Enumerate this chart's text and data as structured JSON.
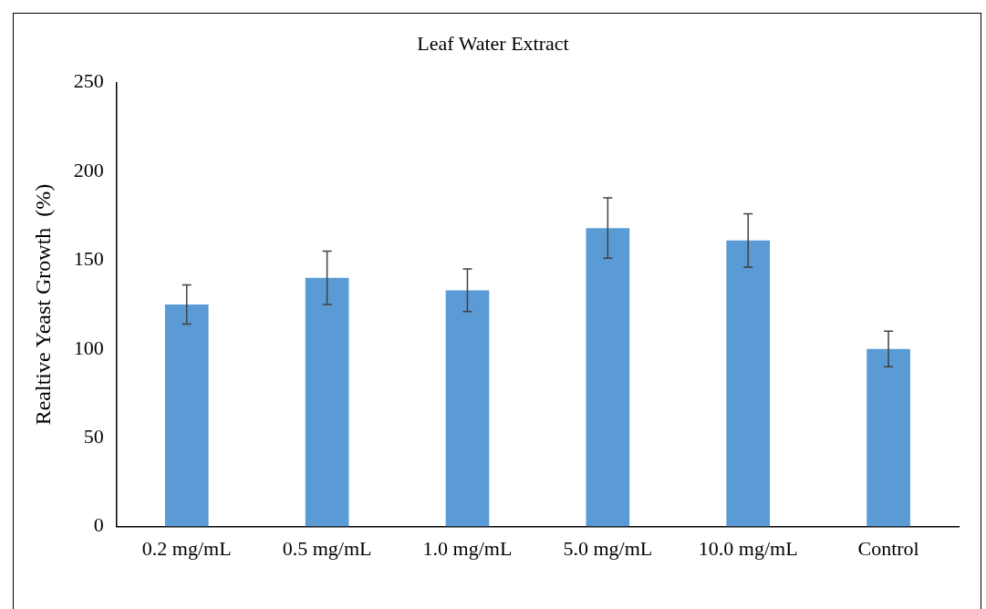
{
  "chart_data": {
    "type": "bar",
    "title": "Leaf Water Extract",
    "ylabel": "Realtive Yeast Growth  (%)",
    "categories": [
      "0.2 mg/mL",
      "0.5 mg/mL",
      "1.0 mg/mL",
      "5.0 mg/mL",
      "10.0 mg/mL",
      "Control"
    ],
    "values": [
      125,
      140,
      133,
      168,
      161,
      100
    ],
    "errors": [
      11,
      15,
      12,
      17,
      15,
      10
    ],
    "color": "#5b9bd5",
    "ylim": [
      0,
      250
    ],
    "yticks": [
      0,
      50,
      100,
      150,
      200,
      250
    ],
    "grid": false,
    "legend": false
  }
}
